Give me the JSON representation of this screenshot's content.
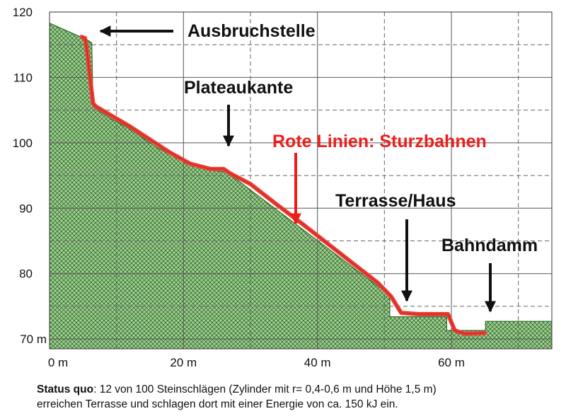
{
  "chart_data": {
    "type": "profile",
    "xlim": [
      0,
      75
    ],
    "ylim": [
      68.5,
      120
    ],
    "xticks": [
      {
        "value": 0,
        "label": "0 m"
      },
      {
        "value": 20,
        "label": "20 m"
      },
      {
        "value": 40,
        "label": "40 m"
      },
      {
        "value": 60,
        "label": "60 m"
      }
    ],
    "yticks": [
      {
        "value": 70,
        "label": "70 m"
      },
      80,
      90,
      100,
      110,
      120
    ],
    "xgrid": [
      10,
      30,
      50,
      70
    ],
    "ygrid": [
      75,
      85,
      95,
      105,
      115
    ],
    "grid": true,
    "series": [
      {
        "color": "#a3cf95",
        "x": [
          0,
          5.5,
          6.3,
          6.5,
          9,
          12.2,
          16,
          20.1,
          24,
          26.5,
          50.8,
          50.8,
          59.3,
          59.3,
          65.1,
          65.1,
          75
        ],
        "values": [
          118.3,
          115.8,
          115.3,
          105.5,
          103.8,
          102,
          99.3,
          97.1,
          95.8,
          95.5,
          76.7,
          73.4,
          73.4,
          71.3,
          71.3,
          72.7,
          72.7
        ]
      },
      {
        "color": "#ec4138",
        "x": [
          4.8,
          5.3,
          5.6,
          6.5,
          7,
          9,
          12,
          15,
          18,
          21,
          24,
          26,
          27,
          30,
          34,
          38,
          42,
          46,
          49,
          51,
          52.5,
          55,
          59.5,
          60.5,
          62,
          65
        ],
        "values": [
          116.2,
          116,
          114,
          106,
          105.5,
          104.3,
          102.5,
          100.5,
          98.5,
          96.8,
          96,
          96,
          95.3,
          93.7,
          90.5,
          87.4,
          84.2,
          81,
          78.6,
          76.5,
          74,
          73.8,
          73.8,
          71.3,
          70.8,
          70.9
        ]
      }
    ],
    "annotations": [
      "Ausbruchstelle",
      "Plateaukante",
      "Rote Linien: Sturzbahnen",
      "Terrasse/Haus",
      "Bahndamm"
    ]
  },
  "caption": {
    "bold": "Status quo",
    "line1": ": 12 von 100 Steinschlägen (Zylinder mit r= 0,4-0,6 m und Höhe 1,5 m)",
    "line2": "erreichen Terrasse und schlagen dort mit einer Energie von ca. 150 kJ ein."
  }
}
